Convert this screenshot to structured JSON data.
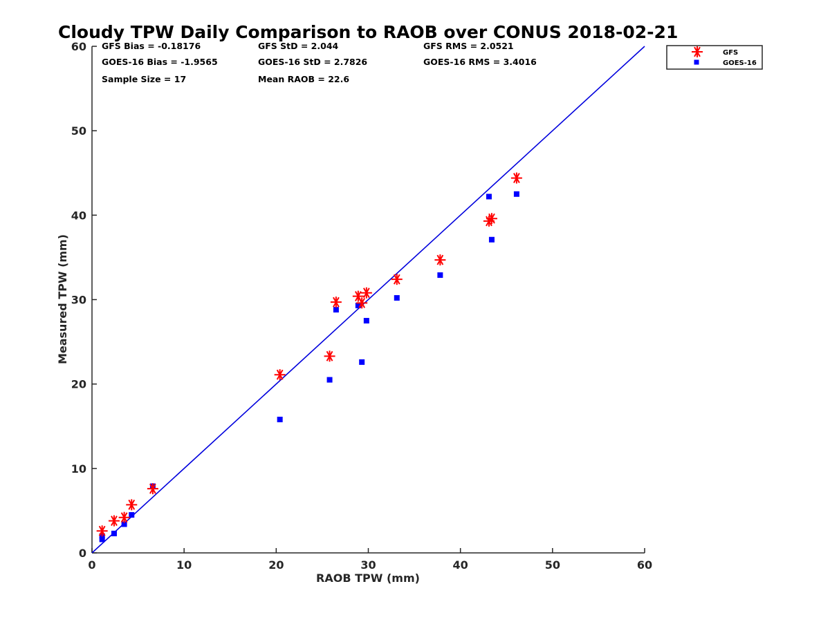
{
  "chart_data": {
    "type": "scatter",
    "title": "Cloudy TPW Daily Comparison to RAOB over CONUS 2018-02-21",
    "xlabel": "RAOB TPW (mm)",
    "ylabel": "Measured TPW (mm)",
    "xlim": [
      0,
      60
    ],
    "ylim": [
      0,
      60
    ],
    "xticks": [
      "0",
      "10",
      "20",
      "30",
      "40",
      "50",
      "60"
    ],
    "yticks": [
      "0",
      "10",
      "20",
      "30",
      "40",
      "50",
      "60"
    ],
    "grid": false,
    "legend_position": "outside top-right",
    "one_to_one_line": {
      "x": [
        0,
        60
      ],
      "y": [
        0,
        60
      ],
      "color": "#0000DD"
    },
    "stats": [
      "GFS Bias = -0.18176",
      "GFS StD = 2.044",
      "GFS RMS = 2.0521",
      "GOES-16 Bias = -1.9565",
      "GOES-16 StD = 2.7826",
      "GOES-16 RMS = 3.4016",
      "Sample Size = 17",
      "Mean RAOB = 22.6"
    ],
    "series": [
      {
        "name": "GFS",
        "marker": "asterisk",
        "color": "#FF0000",
        "x": [
          1.1,
          2.4,
          3.5,
          4.3,
          6.6,
          20.4,
          25.8,
          26.5,
          28.9,
          29.3,
          29.8,
          33.1,
          37.8,
          43.1,
          43.4,
          46.1
        ],
        "y": [
          2.6,
          3.8,
          4.2,
          5.7,
          7.6,
          21.1,
          23.3,
          29.7,
          30.4,
          29.6,
          30.8,
          32.4,
          34.7,
          39.3,
          39.6,
          44.4
        ]
      },
      {
        "name": "GOES-16",
        "marker": "square",
        "color": "#0000FF",
        "x": [
          1.1,
          1.1,
          2.4,
          3.5,
          4.3,
          6.6,
          20.4,
          25.8,
          26.5,
          28.9,
          29.3,
          29.8,
          33.1,
          37.8,
          43.1,
          43.4,
          46.1
        ],
        "y": [
          2.0,
          1.6,
          2.3,
          3.4,
          4.5,
          7.9,
          15.8,
          20.5,
          28.8,
          29.3,
          22.6,
          27.5,
          30.2,
          32.9,
          42.2,
          37.1,
          42.5
        ]
      }
    ]
  }
}
